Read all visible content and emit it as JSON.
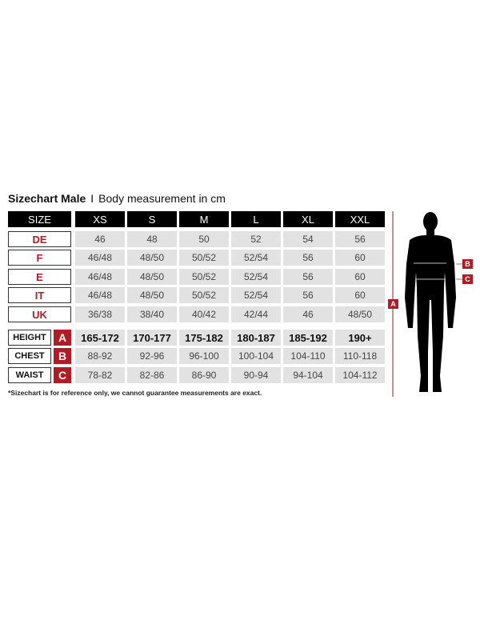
{
  "title": {
    "bold": "Sizechart Male",
    "separator": "I",
    "subtitle": "Body measurement in cm"
  },
  "table": {
    "corner": "SIZE",
    "sizes": [
      "XS",
      "S",
      "M",
      "L",
      "XL",
      "XXL"
    ],
    "conversion_rows": [
      {
        "label": "DE",
        "values": [
          "46",
          "48",
          "50",
          "52",
          "54",
          "56"
        ]
      },
      {
        "label": "F",
        "values": [
          "46/48",
          "48/50",
          "50/52",
          "52/54",
          "56",
          "60"
        ]
      },
      {
        "label": "E",
        "values": [
          "46/48",
          "48/50",
          "50/52",
          "52/54",
          "56",
          "60"
        ]
      },
      {
        "label": "IT",
        "values": [
          "46/48",
          "48/50",
          "50/52",
          "52/54",
          "56",
          "60"
        ]
      },
      {
        "label": "UK",
        "values": [
          "36/38",
          "38/40",
          "40/42",
          "42/44",
          "46",
          "48/50"
        ]
      }
    ],
    "measurement_rows": [
      {
        "label": "HEIGHT",
        "badge": "A",
        "values": [
          "165-172",
          "170-177",
          "175-182",
          "180-187",
          "185-192",
          "190+"
        ],
        "bold": true
      },
      {
        "label": "CHEST",
        "badge": "B",
        "values": [
          "88-92",
          "92-96",
          "96-100",
          "100-104",
          "104-110",
          "110-118"
        ],
        "bold": false
      },
      {
        "label": "WAIST",
        "badge": "C",
        "values": [
          "78-82",
          "82-86",
          "86-90",
          "90-94",
          "94-104",
          "104-112"
        ],
        "bold": false
      }
    ]
  },
  "footnote": "*Sizechart is for reference only, we cannot guarantee measurements are exact.",
  "figure": {
    "height_marker": "A",
    "chest_marker": "B",
    "waist_marker": "C"
  },
  "colors": {
    "accent": "#b01c24",
    "header": "#000000",
    "cell": "#e2e2e2"
  }
}
